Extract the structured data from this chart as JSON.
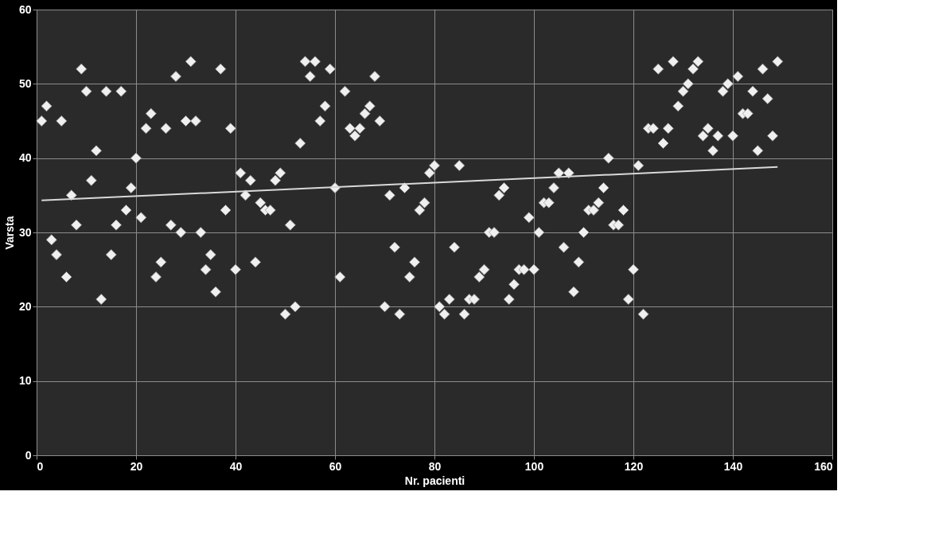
{
  "chart_data": {
    "type": "scatter",
    "xlabel": "Nr. pacienti",
    "ylabel": "Varsta",
    "xlim": [
      0,
      160
    ],
    "ylim": [
      0,
      60
    ],
    "xticks": [
      0,
      20,
      40,
      60,
      80,
      100,
      120,
      140,
      160
    ],
    "yticks": [
      0,
      10,
      20,
      30,
      40,
      50,
      60
    ],
    "grid": true,
    "series": [
      {
        "marker": "diamond",
        "color": "#f0f0f0",
        "x": [
          1,
          2,
          3,
          4,
          5,
          6,
          7,
          8,
          9,
          10,
          11,
          12,
          13,
          14,
          15,
          16,
          17,
          18,
          19,
          20,
          21,
          22,
          23,
          24,
          25,
          26,
          27,
          28,
          29,
          30,
          31,
          32,
          33,
          34,
          35,
          36,
          37,
          38,
          39,
          40,
          41,
          42,
          43,
          44,
          45,
          46,
          47,
          48,
          49,
          50,
          51,
          52,
          53,
          54,
          55,
          56,
          57,
          58,
          59,
          60,
          61,
          62,
          63,
          64,
          65,
          66,
          67,
          68,
          69,
          70,
          71,
          72,
          73,
          74,
          75,
          76,
          77,
          78,
          79,
          80,
          81,
          82,
          83,
          84,
          85,
          86,
          87,
          88,
          89,
          90,
          91,
          92,
          93,
          94,
          95,
          96,
          97,
          98,
          99,
          100,
          101,
          102,
          103,
          104,
          105,
          106,
          107,
          108,
          109,
          110,
          111,
          112,
          113,
          114,
          115,
          116,
          117,
          118,
          119,
          120,
          121,
          122,
          123,
          124,
          125,
          126,
          127,
          128,
          129,
          130,
          131,
          132,
          133,
          134,
          135,
          136,
          137,
          138,
          139,
          140,
          141,
          142,
          143,
          144,
          145,
          146,
          147,
          148,
          149
        ],
        "values": [
          45,
          47,
          29,
          27,
          45,
          24,
          35,
          31,
          52,
          49,
          37,
          41,
          21,
          49,
          27,
          31,
          49,
          33,
          36,
          40,
          32,
          44,
          46,
          24,
          26,
          44,
          31,
          51,
          30,
          45,
          53,
          45,
          30,
          25,
          27,
          22,
          52,
          33,
          44,
          25,
          38,
          35,
          37,
          26,
          34,
          33,
          33,
          37,
          38,
          19,
          31,
          20,
          42,
          53,
          51,
          53,
          45,
          47,
          52,
          36,
          24,
          49,
          44,
          43,
          44,
          46,
          47,
          51,
          45,
          20,
          35,
          28,
          19,
          36,
          24,
          26,
          33,
          34,
          38,
          39,
          20,
          19,
          21,
          28,
          39,
          19,
          21,
          21,
          24,
          25,
          30,
          30,
          35,
          36,
          21,
          23,
          25,
          25,
          32,
          25,
          30,
          34,
          34,
          36,
          38,
          28,
          38,
          22,
          26,
          30,
          33,
          33,
          34,
          36,
          40,
          31,
          31,
          33,
          21,
          25,
          39,
          19,
          44,
          44,
          52,
          42,
          44,
          53,
          47,
          49,
          50,
          52,
          53,
          43,
          44,
          41,
          43,
          49,
          50,
          43,
          51,
          46,
          46,
          49,
          41,
          52,
          48,
          43,
          53
        ]
      },
      {
        "type": "line",
        "marker": "none",
        "color": "#d9d9d9",
        "x": [
          1,
          149
        ],
        "values": [
          34.3,
          38.8
        ]
      }
    ]
  }
}
